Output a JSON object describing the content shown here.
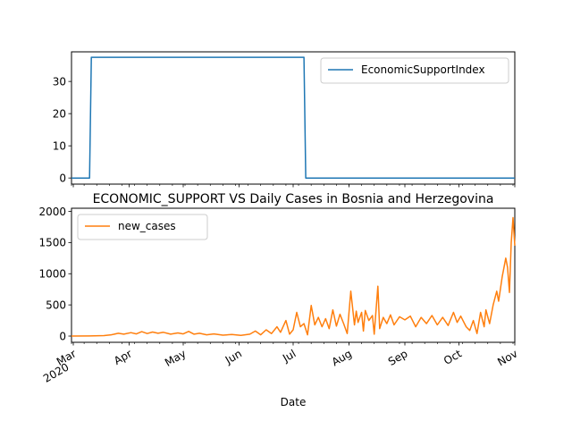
{
  "chart_data": [
    {
      "type": "line",
      "title": "",
      "xlabel": "",
      "ylabel": "",
      "x_range": [
        "2020-02-29",
        "2020-11-01"
      ],
      "ylim": [
        -1.9,
        39.2
      ],
      "yticks": [
        0,
        10,
        20,
        30
      ],
      "grid": false,
      "legend_position": "top-right",
      "series": [
        {
          "name": "EconomicSupportIndex",
          "color": "#1f77b4",
          "points": [
            {
              "x": "2020-02-29",
              "y": 0
            },
            {
              "x": "2020-03-10",
              "y": 0
            },
            {
              "x": "2020-03-11",
              "y": 37.5
            },
            {
              "x": "2020-07-07",
              "y": 37.5
            },
            {
              "x": "2020-07-08",
              "y": 0
            },
            {
              "x": "2020-11-01",
              "y": 0
            }
          ]
        }
      ]
    },
    {
      "type": "line",
      "title": "ECONOMIC_SUPPORT VS Daily Cases in Bosnia and Herzegovina",
      "xlabel": "Date",
      "ylabel": "",
      "x_range": [
        "2020-02-29",
        "2020-11-01"
      ],
      "ylim": [
        -100,
        2050
      ],
      "yticks": [
        0,
        500,
        1000,
        1500,
        2000
      ],
      "x_tick_labels": [
        {
          "date": "2020-03-01",
          "label": "Mar",
          "sublabel": "2020"
        },
        {
          "date": "2020-04-01",
          "label": "Apr"
        },
        {
          "date": "2020-05-01",
          "label": "May"
        },
        {
          "date": "2020-06-01",
          "label": "Jun"
        },
        {
          "date": "2020-07-01",
          "label": "Jul"
        },
        {
          "date": "2020-08-01",
          "label": "Aug"
        },
        {
          "date": "2020-09-01",
          "label": "Sep"
        },
        {
          "date": "2020-10-01",
          "label": "Oct"
        },
        {
          "date": "2020-11-01",
          "label": "Nov"
        }
      ],
      "grid": false,
      "legend_position": "top-left",
      "series": [
        {
          "name": "new_cases",
          "color": "#ff7f0e",
          "points": [
            {
              "x": "2020-02-29",
              "y": 0
            },
            {
              "x": "2020-03-10",
              "y": 2
            },
            {
              "x": "2020-03-18",
              "y": 8
            },
            {
              "x": "2020-03-22",
              "y": 20
            },
            {
              "x": "2020-03-26",
              "y": 45
            },
            {
              "x": "2020-03-29",
              "y": 30
            },
            {
              "x": "2020-04-02",
              "y": 55
            },
            {
              "x": "2020-04-05",
              "y": 35
            },
            {
              "x": "2020-04-08",
              "y": 70
            },
            {
              "x": "2020-04-11",
              "y": 40
            },
            {
              "x": "2020-04-14",
              "y": 65
            },
            {
              "x": "2020-04-17",
              "y": 45
            },
            {
              "x": "2020-04-20",
              "y": 60
            },
            {
              "x": "2020-04-24",
              "y": 30
            },
            {
              "x": "2020-04-28",
              "y": 50
            },
            {
              "x": "2020-05-01",
              "y": 35
            },
            {
              "x": "2020-05-04",
              "y": 75
            },
            {
              "x": "2020-05-07",
              "y": 30
            },
            {
              "x": "2020-05-10",
              "y": 45
            },
            {
              "x": "2020-05-14",
              "y": 20
            },
            {
              "x": "2020-05-18",
              "y": 35
            },
            {
              "x": "2020-05-23",
              "y": 15
            },
            {
              "x": "2020-05-28",
              "y": 25
            },
            {
              "x": "2020-06-02",
              "y": 10
            },
            {
              "x": "2020-06-07",
              "y": 30
            },
            {
              "x": "2020-06-10",
              "y": 80
            },
            {
              "x": "2020-06-13",
              "y": 20
            },
            {
              "x": "2020-06-16",
              "y": 100
            },
            {
              "x": "2020-06-19",
              "y": 40
            },
            {
              "x": "2020-06-22",
              "y": 150
            },
            {
              "x": "2020-06-24",
              "y": 60
            },
            {
              "x": "2020-06-27",
              "y": 250
            },
            {
              "x": "2020-06-29",
              "y": 30
            },
            {
              "x": "2020-07-01",
              "y": 100
            },
            {
              "x": "2020-07-03",
              "y": 380
            },
            {
              "x": "2020-07-05",
              "y": 150
            },
            {
              "x": "2020-07-07",
              "y": 200
            },
            {
              "x": "2020-07-09",
              "y": 20
            },
            {
              "x": "2020-07-11",
              "y": 490
            },
            {
              "x": "2020-07-13",
              "y": 180
            },
            {
              "x": "2020-07-15",
              "y": 300
            },
            {
              "x": "2020-07-17",
              "y": 150
            },
            {
              "x": "2020-07-19",
              "y": 280
            },
            {
              "x": "2020-07-21",
              "y": 120
            },
            {
              "x": "2020-07-23",
              "y": 420
            },
            {
              "x": "2020-07-25",
              "y": 160
            },
            {
              "x": "2020-07-27",
              "y": 350
            },
            {
              "x": "2020-07-29",
              "y": 200
            },
            {
              "x": "2020-07-31",
              "y": 40
            },
            {
              "x": "2020-08-02",
              "y": 720
            },
            {
              "x": "2020-08-04",
              "y": 180
            },
            {
              "x": "2020-08-05",
              "y": 400
            },
            {
              "x": "2020-08-06",
              "y": 220
            },
            {
              "x": "2020-08-08",
              "y": 380
            },
            {
              "x": "2020-08-09",
              "y": 80
            },
            {
              "x": "2020-08-10",
              "y": 410
            },
            {
              "x": "2020-08-12",
              "y": 250
            },
            {
              "x": "2020-08-14",
              "y": 330
            },
            {
              "x": "2020-08-15",
              "y": 30
            },
            {
              "x": "2020-08-17",
              "y": 800
            },
            {
              "x": "2020-08-18",
              "y": 120
            },
            {
              "x": "2020-08-20",
              "y": 300
            },
            {
              "x": "2020-08-22",
              "y": 200
            },
            {
              "x": "2020-08-24",
              "y": 340
            },
            {
              "x": "2020-08-26",
              "y": 180
            },
            {
              "x": "2020-08-29",
              "y": 310
            },
            {
              "x": "2020-09-01",
              "y": 260
            },
            {
              "x": "2020-09-04",
              "y": 320
            },
            {
              "x": "2020-09-07",
              "y": 150
            },
            {
              "x": "2020-09-10",
              "y": 300
            },
            {
              "x": "2020-09-13",
              "y": 200
            },
            {
              "x": "2020-09-16",
              "y": 330
            },
            {
              "x": "2020-09-19",
              "y": 180
            },
            {
              "x": "2020-09-22",
              "y": 300
            },
            {
              "x": "2020-09-25",
              "y": 170
            },
            {
              "x": "2020-09-28",
              "y": 380
            },
            {
              "x": "2020-09-30",
              "y": 220
            },
            {
              "x": "2020-10-02",
              "y": 320
            },
            {
              "x": "2020-10-05",
              "y": 150
            },
            {
              "x": "2020-10-07",
              "y": 90
            },
            {
              "x": "2020-10-09",
              "y": 250
            },
            {
              "x": "2020-10-11",
              "y": 40
            },
            {
              "x": "2020-10-13",
              "y": 380
            },
            {
              "x": "2020-10-15",
              "y": 150
            },
            {
              "x": "2020-10-16",
              "y": 420
            },
            {
              "x": "2020-10-18",
              "y": 200
            },
            {
              "x": "2020-10-20",
              "y": 500
            },
            {
              "x": "2020-10-22",
              "y": 720
            },
            {
              "x": "2020-10-23",
              "y": 560
            },
            {
              "x": "2020-10-25",
              "y": 950
            },
            {
              "x": "2020-10-27",
              "y": 1250
            },
            {
              "x": "2020-10-28",
              "y": 1100
            },
            {
              "x": "2020-10-29",
              "y": 700
            },
            {
              "x": "2020-10-30",
              "y": 1500
            },
            {
              "x": "2020-10-31",
              "y": 1900
            },
            {
              "x": "2020-11-01",
              "y": 1450
            }
          ]
        }
      ]
    }
  ]
}
